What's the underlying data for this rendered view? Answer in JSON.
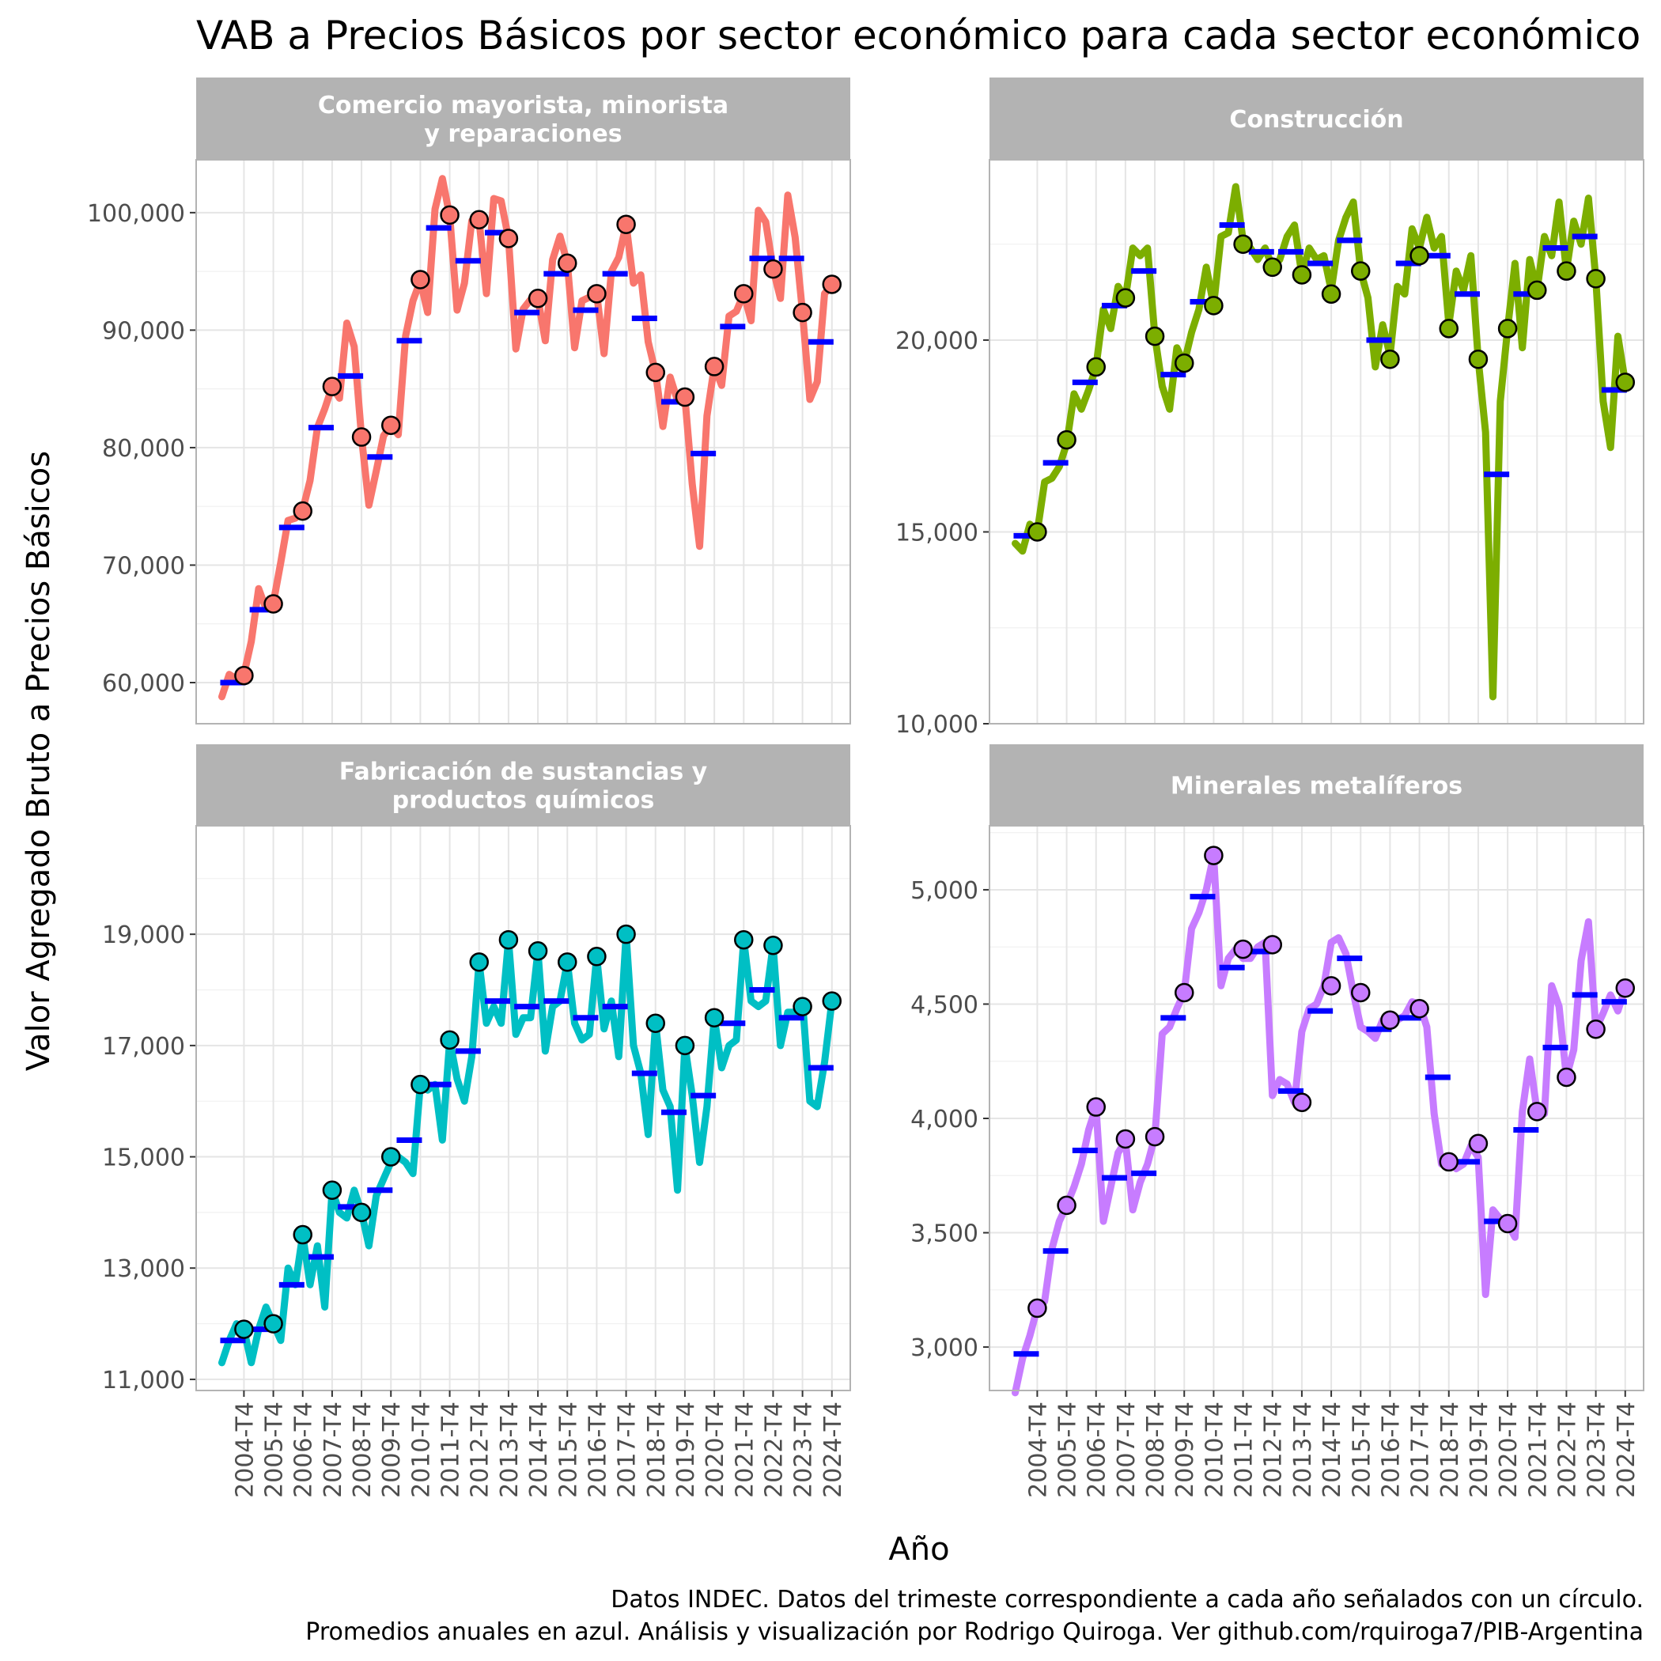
{
  "title": "VAB a Precios Básicos por sector económico para cada sector económico",
  "ylabel": "Valor Agregado Bruto a Precios Básicos",
  "xlabel": "Año",
  "caption": [
    "Datos INDEC. Datos del trimeste correspondiente a cada año señalados con un círculo.",
    "Promedios anuales en azul. Análisis y visualización por Rodrigo Quiroga. Ver github.com/rquiroga7/PIB-Argentina"
  ],
  "x_ticks": [
    "2004-T4",
    "2005-T4",
    "2006-T4",
    "2007-T4",
    "2008-T4",
    "2009-T4",
    "2010-T4",
    "2011-T4",
    "2012-T4",
    "2013-T4",
    "2014-T4",
    "2015-T4",
    "2016-T4",
    "2017-T4",
    "2018-T4",
    "2019-T4",
    "2020-T4",
    "2021-T4",
    "2022-T4",
    "2023-T4",
    "2024-T4"
  ],
  "colors": {
    "average": "#0000ff",
    "strip": "#b3b3b3",
    "grid": "#e5e5e5",
    "panel_border": "#b3b3b3"
  },
  "chart_data": [
    {
      "type": "line",
      "facet": "Comercio mayorista, minorista\ny reparaciones",
      "color": "#f8766d",
      "ylim": [
        56500,
        104500
      ],
      "y_ticks": [
        60000,
        70000,
        80000,
        90000,
        100000
      ],
      "y_tick_labels": [
        "60,000",
        "70,000",
        "80,000",
        "90,000",
        "100,000"
      ],
      "quarterly": [
        58800,
        60700,
        60300,
        60700,
        63500,
        68000,
        66300,
        66800,
        70200,
        73800,
        74000,
        74700,
        77200,
        81700,
        83300,
        85200,
        84200,
        90600,
        88600,
        80900,
        75100,
        78000,
        81000,
        81900,
        81100,
        89500,
        92500,
        94200,
        91500,
        100300,
        102900,
        99700,
        91700,
        94000,
        99300,
        99400,
        93100,
        101200,
        101000,
        97800,
        88400,
        91800,
        92600,
        92700,
        89100,
        96000,
        98000,
        95700,
        88500,
        92500,
        92800,
        93100,
        88000,
        95000,
        96200,
        99000,
        94000,
        94700,
        89000,
        86400,
        81800,
        86000,
        84000,
        84300,
        76900,
        71600,
        82700,
        86900,
        85300,
        91200,
        91600,
        93100,
        90800,
        100200,
        99200,
        95200,
        92700,
        101500,
        97900,
        91500,
        84100,
        85600,
        93100,
        93900
      ],
      "circles": [
        60600,
        66700,
        74600,
        85200,
        80900,
        81900,
        94300,
        99800,
        99400,
        97800,
        92700,
        95700,
        93100,
        99000,
        86400,
        84300,
        86900,
        93100,
        95200,
        91500,
        93900
      ],
      "averages": [
        60000,
        66200,
        73200,
        81700,
        86100,
        79200,
        89100,
        98700,
        95900,
        98300,
        91500,
        94800,
        91700,
        94800,
        91000,
        83900,
        79500,
        90300,
        96100,
        96100,
        89000
      ]
    },
    {
      "type": "line",
      "facet": "Construcción",
      "color": "#7cae00",
      "ylim": [
        10000,
        24700
      ],
      "y_ticks": [
        10000,
        15000,
        20000
      ],
      "y_tick_labels": [
        "10,000",
        "15,000",
        "20,000"
      ],
      "quarterly": [
        14700,
        14500,
        15200,
        15000,
        16300,
        16400,
        16700,
        17300,
        18600,
        18200,
        18700,
        19300,
        20800,
        20300,
        21400,
        21100,
        22400,
        22200,
        22400,
        20100,
        18800,
        18200,
        19800,
        19400,
        20200,
        20800,
        21900,
        20900,
        22700,
        22800,
        24000,
        22600,
        22400,
        22100,
        22400,
        21900,
        22100,
        22700,
        23000,
        21700,
        22400,
        22100,
        22200,
        21300,
        22600,
        23200,
        23600,
        21800,
        21100,
        19300,
        20400,
        19600,
        21400,
        21200,
        22900,
        22400,
        23200,
        22400,
        22700,
        20400,
        21800,
        21300,
        22200,
        19500,
        17600,
        10700,
        18400,
        20300,
        22000,
        19800,
        22100,
        21300,
        22700,
        22200,
        23600,
        21800,
        23100,
        22500,
        23700,
        21600,
        18400,
        17200,
        20100,
        18900
      ],
      "circles": [
        15000,
        17400,
        19300,
        21100,
        20100,
        19400,
        20900,
        22500,
        21900,
        21700,
        21200,
        21800,
        19500,
        22200,
        20300,
        19500,
        20300,
        21300,
        21800,
        21600,
        18900
      ],
      "averages": [
        14900,
        16800,
        18900,
        20900,
        21800,
        19100,
        21000,
        23000,
        22300,
        22300,
        22000,
        22600,
        20000,
        22000,
        22200,
        21200,
        16500,
        21200,
        22400,
        22700,
        18700
      ]
    },
    {
      "type": "line",
      "facet": "Fabricación de sustancias y\nproductos químicos",
      "color": "#00bfc4",
      "ylim": [
        10800,
        20950
      ],
      "y_ticks": [
        11000,
        13000,
        15000,
        17000,
        19000
      ],
      "y_tick_labels": [
        "11,000",
        "13,000",
        "15,000",
        "17,000",
        "19,000"
      ],
      "quarterly": [
        11300,
        11700,
        12000,
        11900,
        11300,
        11900,
        12300,
        12000,
        11700,
        13000,
        12700,
        13600,
        12700,
        13400,
        12300,
        14400,
        14000,
        13900,
        14400,
        14000,
        13400,
        14300,
        14600,
        14900,
        15000,
        14900,
        14700,
        16300,
        16200,
        16300,
        15300,
        17100,
        16400,
        16000,
        16800,
        18500,
        17400,
        17700,
        17400,
        18900,
        17200,
        17500,
        17500,
        18700,
        16900,
        17700,
        17800,
        18500,
        17400,
        17100,
        17200,
        18600,
        17300,
        17800,
        16800,
        19000,
        17000,
        16500,
        15400,
        17400,
        16200,
        15900,
        14400,
        17000,
        16100,
        14900,
        15900,
        17500,
        16600,
        17000,
        17100,
        18900,
        17800,
        17700,
        17800,
        18800,
        17000,
        17600,
        17600,
        17800,
        16000,
        15900,
        16700,
        17800
      ],
      "circles": [
        11900,
        12000,
        13600,
        14400,
        14000,
        15000,
        16300,
        17100,
        18500,
        18900,
        18700,
        18500,
        18600,
        19000,
        17400,
        17000,
        17500,
        18900,
        18800,
        17700,
        17800
      ],
      "averages": [
        11700,
        11900,
        12700,
        13200,
        14100,
        14400,
        15300,
        16300,
        16900,
        17800,
        17700,
        17800,
        17500,
        17700,
        16500,
        15800,
        16100,
        17400,
        18000,
        17500,
        16600
      ]
    },
    {
      "type": "line",
      "facet": "Minerales metalíferos",
      "color": "#c77cff",
      "ylim": [
        2810,
        5280
      ],
      "y_ticks": [
        3000,
        3500,
        4000,
        4500,
        5000
      ],
      "y_tick_labels": [
        "3,000",
        "3,500",
        "4,000",
        "4,500",
        "5,000"
      ],
      "quarterly": [
        2800,
        2950,
        3050,
        3170,
        3200,
        3430,
        3550,
        3620,
        3700,
        3800,
        3950,
        4050,
        3550,
        3700,
        3850,
        3900,
        3600,
        3720,
        3800,
        3920,
        4370,
        4400,
        4480,
        4550,
        4830,
        4900,
        5000,
        5150,
        4580,
        4700,
        4740,
        4700,
        4700,
        4750,
        4770,
        4100,
        4170,
        4150,
        4070,
        4380,
        4480,
        4500,
        4580,
        4770,
        4790,
        4720,
        4550,
        4400,
        4380,
        4350,
        4430,
        4450,
        4430,
        4450,
        4510,
        4500,
        4400,
        4020,
        3800,
        3810,
        3780,
        3800,
        3880,
        3830,
        3230,
        3600,
        3560,
        3540,
        3480,
        4030,
        4260,
        4030,
        4020,
        4580,
        4490,
        4180,
        4300,
        4690,
        4860,
        4390,
        4460,
        4540,
        4470,
        4570
      ],
      "circles": [
        3170,
        3620,
        4050,
        3910,
        3920,
        4550,
        5150,
        4740,
        4760,
        4070,
        4580,
        4550,
        4430,
        4480,
        3810,
        3890,
        3540,
        4030,
        4180,
        4390,
        4570
      ],
      "averages": [
        2970,
        3420,
        3860,
        3740,
        3760,
        4440,
        4970,
        4660,
        4730,
        4120,
        4470,
        4700,
        4390,
        4440,
        4180,
        3810,
        3550,
        3950,
        4310,
        4540,
        4510
      ]
    }
  ]
}
